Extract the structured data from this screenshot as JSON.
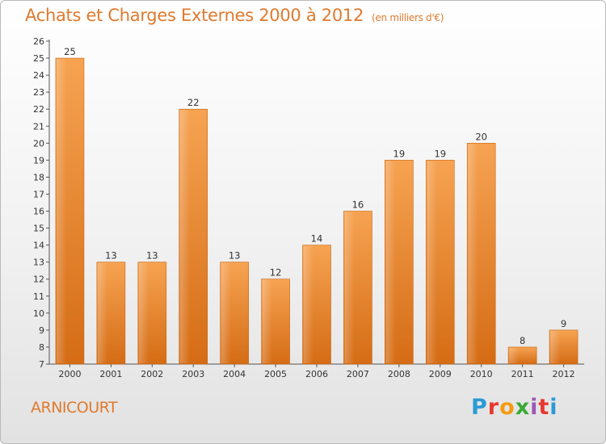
{
  "title": "Achats et Charges Externes 2000 à 2012",
  "subtitle": "(en milliers d'€)",
  "commune": "ARNICOURT",
  "logo": {
    "letters": [
      "P",
      "r",
      "o",
      "x",
      "i",
      "t",
      "i"
    ],
    "colors": [
      "#2a9ad6",
      "#e8372d",
      "#f39c12",
      "#3aaa35",
      "#9b59b6",
      "#e8372d",
      "#2a9ad6"
    ]
  },
  "colors": {
    "bar": "#f0913c",
    "bar_dark": "#d66a12",
    "title": "#e07a2e"
  },
  "chart_data": {
    "type": "bar",
    "categories": [
      "2000",
      "2001",
      "2002",
      "2003",
      "2004",
      "2005",
      "2006",
      "2007",
      "2008",
      "2009",
      "2010",
      "2011",
      "2012"
    ],
    "values": [
      25,
      13,
      13,
      22,
      13,
      12,
      14,
      16,
      19,
      19,
      20,
      8,
      9
    ],
    "ylim": [
      7,
      26
    ],
    "yticks": [
      7,
      8,
      9,
      10,
      11,
      12,
      13,
      14,
      15,
      16,
      17,
      18,
      19,
      20,
      21,
      22,
      23,
      24,
      25,
      26
    ],
    "grid": false,
    "legend": "none"
  }
}
